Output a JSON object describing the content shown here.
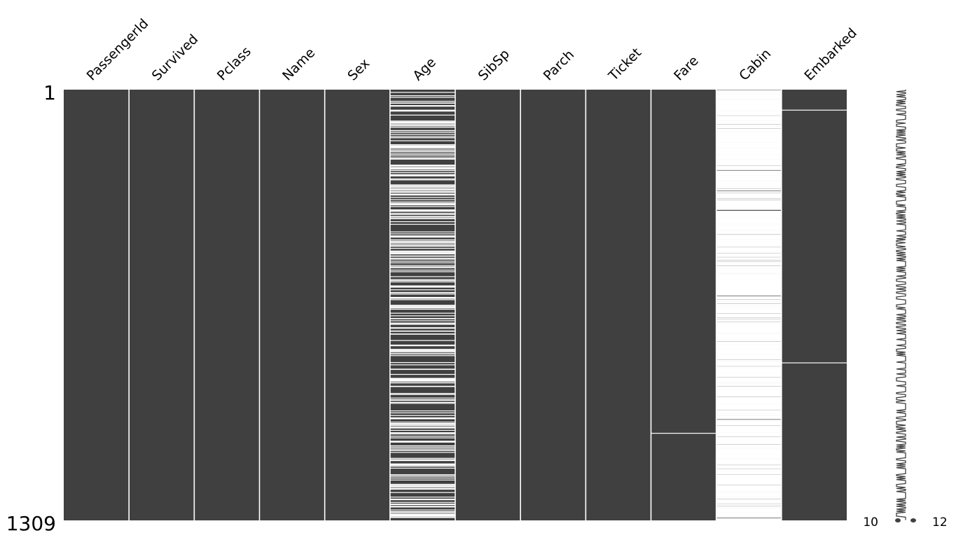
{
  "chart_data": {
    "type": "heatmap",
    "title": "",
    "row_range": [
      1,
      1309
    ],
    "row_tick_labels": [
      "1",
      "1309"
    ],
    "columns": [
      "PassengerId",
      "Survived",
      "Pclass",
      "Name",
      "Sex",
      "Age",
      "SibSp",
      "Parch",
      "Ticket",
      "Fare",
      "Cabin",
      "Embarked"
    ],
    "missing_counts": [
      0,
      0,
      0,
      0,
      0,
      263,
      0,
      0,
      0,
      1,
      1014,
      2
    ],
    "approx_missing_rows": {
      "Fare": [
        1044
      ],
      "Embarked": [
        62,
        830
      ]
    },
    "sparkline": {
      "axis_labels": [
        "10",
        "12"
      ],
      "min_completeness": 10,
      "max_completeness": 12,
      "total_columns": 12
    },
    "colors": {
      "present": "#404040",
      "missing": "#ffffff",
      "separator": "#ffffff"
    },
    "grid": false
  }
}
